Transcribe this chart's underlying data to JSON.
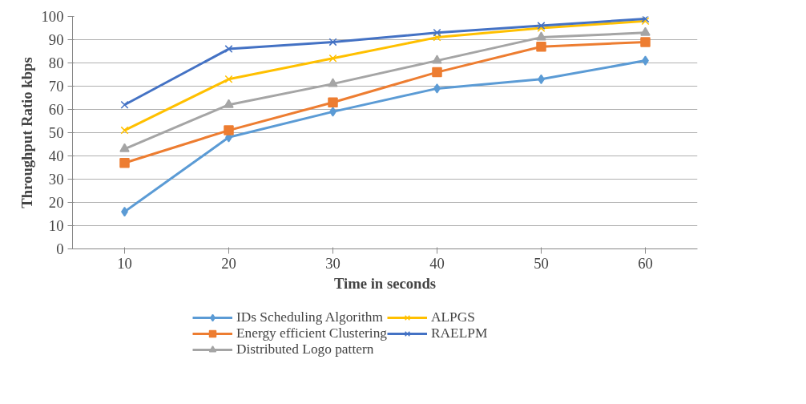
{
  "chart_data": {
    "type": "line",
    "xlabel": "Time in seconds",
    "ylabel": "Throughput Ratio kbps",
    "categories": [
      "10",
      "20",
      "30",
      "40",
      "50",
      "60"
    ],
    "ylim": [
      0,
      100
    ],
    "yticks": [
      0,
      10,
      20,
      30,
      40,
      50,
      60,
      70,
      80,
      90,
      100
    ],
    "grid": "y",
    "legend": "bottom",
    "series": [
      {
        "name": "IDs Scheduling Algorithm",
        "color": "#5b9bd5",
        "marker": "diamond",
        "values": [
          16,
          48,
          59,
          69,
          73,
          81
        ]
      },
      {
        "name": "Energy efficient Clustering",
        "color": "#ed7d31",
        "marker": "square",
        "values": [
          37,
          51,
          63,
          76,
          87,
          89
        ]
      },
      {
        "name": "Distributed Logo pattern",
        "color": "#a5a5a5",
        "marker": "triangle",
        "values": [
          43,
          62,
          71,
          81,
          91,
          93
        ]
      },
      {
        "name": "ALPGS",
        "color": "#ffc000",
        "marker": "cross",
        "values": [
          51,
          73,
          82,
          91,
          95,
          98
        ]
      },
      {
        "name": "RAELPM",
        "color": "#4472c4",
        "marker": "cross",
        "values": [
          62,
          86,
          89,
          93,
          96,
          99
        ]
      }
    ]
  }
}
